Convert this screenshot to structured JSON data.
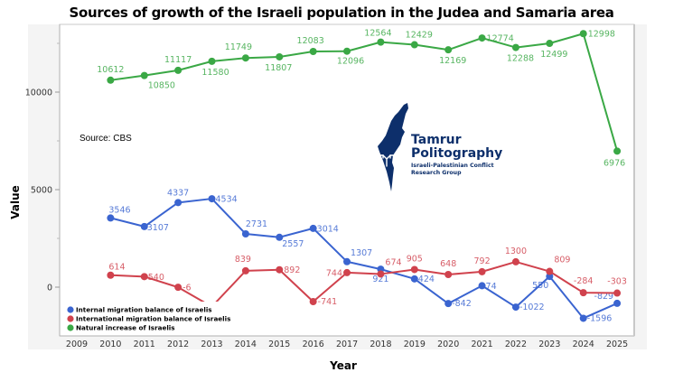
{
  "chart_data": {
    "type": "line",
    "title": "Sources of growth of the Israeli population in the Judea and Samaria area",
    "xlabel": "Year",
    "ylabel": "Value",
    "x_ticks": [
      "2009",
      "2010",
      "2011",
      "2012",
      "2013",
      "2014",
      "2015",
      "2016",
      "2017",
      "2018",
      "2019",
      "2020",
      "2021",
      "2022",
      "2023",
      "2024",
      "2025"
    ],
    "y_ticks": [
      0,
      5000,
      10000
    ],
    "y_tick_labels": [
      "0",
      "5000",
      "10000"
    ],
    "ylim": [
      -2500,
      13500
    ],
    "xlim": [
      2009,
      2025
    ],
    "grid": false,
    "legend_position": "bottom-left",
    "annotation": "Source: CBS",
    "x": [
      2010,
      2011,
      2012,
      2013,
      2014,
      2015,
      2016,
      2017,
      2018,
      2019,
      2020,
      2021,
      2022,
      2023,
      2024,
      2025
    ],
    "series": [
      {
        "name": "Internal migration balance of Israelis",
        "color": "#3a64d0",
        "values": [
          3546,
          3107,
          4337,
          4534,
          2731,
          2557,
          3014,
          1307,
          921,
          424,
          -842,
          74,
          -1022,
          550,
          -1596,
          -829
        ],
        "labels": [
          "3546",
          "3107",
          "4337",
          "4534",
          "2731",
          "2557",
          "3014",
          "1307",
          "921",
          "424",
          "-842",
          "74",
          "-1022",
          "550",
          "-1596",
          "-829"
        ]
      },
      {
        "name": "International migration balance of Israelis",
        "color": "#d0424d",
        "values": [
          614,
          540,
          -6,
          -1000,
          839,
          892,
          -741,
          744,
          674,
          905,
          648,
          792,
          1300,
          809,
          -284,
          -303
        ],
        "labels": [
          "614",
          "540",
          "-6",
          "",
          "839",
          "892",
          "-741",
          "744",
          "674",
          "905",
          "648",
          "792",
          "1300",
          "809",
          "-284",
          "-303"
        ]
      },
      {
        "name": "Natural increase of Israelis",
        "color": "#3aa845",
        "values": [
          10612,
          10850,
          11117,
          11580,
          11749,
          11807,
          12083,
          12096,
          12564,
          12429,
          12169,
          12774,
          12288,
          12499,
          12998,
          6976
        ],
        "labels": [
          "10612",
          "10850",
          "11117",
          "11580",
          "11749",
          "11807",
          "12083",
          "12096",
          "12564",
          "12429",
          "12169",
          "12774",
          "12288",
          "12499",
          "12998",
          "6976"
        ]
      }
    ]
  },
  "logo": {
    "name_line1": "Tamrur",
    "name_line2": "Politography",
    "subtitle_line1": "Israeli-Palestinian Conflict",
    "subtitle_line2": "Research Group",
    "color": "#0d2f6b"
  }
}
